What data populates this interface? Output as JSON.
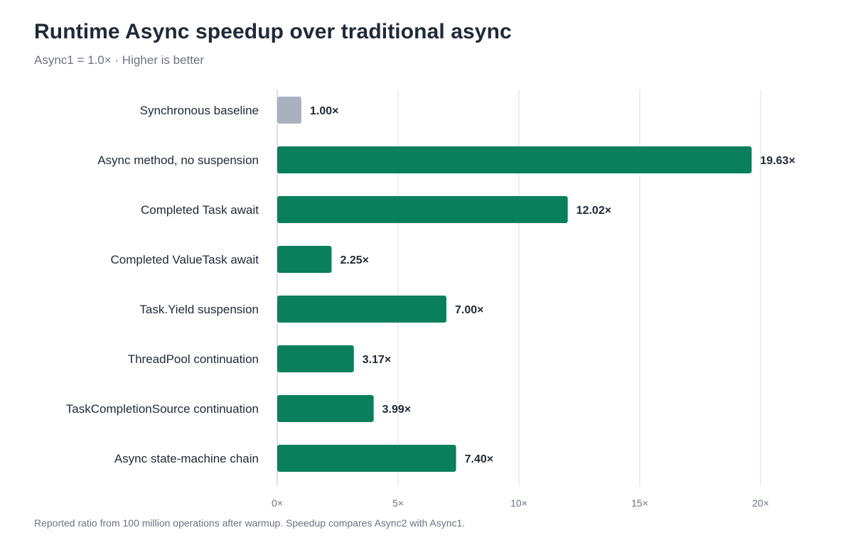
{
  "header": {
    "title": "Runtime Async speedup over traditional async",
    "subtitle": "Async1 = 1.0× · Higher is better"
  },
  "footer": {
    "note": "Reported ratio from 100 million operations after warmup. Speedup compares Async2 with Async1."
  },
  "colors": {
    "accent": "#0a7f5c",
    "baseline": "#a9b0be",
    "grid": "#e5e7eb",
    "text": "#1f2937",
    "muted": "#6b7280"
  },
  "chart_data": {
    "type": "bar",
    "orientation": "horizontal",
    "title": "Runtime Async speedup over traditional async",
    "subtitle": "Async1 = 1.0× · Higher is better",
    "categories": [
      "Synchronous baseline",
      "Async method, no suspension",
      "Completed Task await",
      "Completed ValueTask await",
      "Task.Yield suspension",
      "ThreadPool continuation",
      "TaskCompletionSource continuation",
      "Async state-machine chain"
    ],
    "values": [
      1.0,
      19.63,
      12.02,
      2.25,
      7.0,
      3.17,
      3.99,
      7.4
    ],
    "value_labels": [
      "1.00×",
      "19.63×",
      "12.02×",
      "2.25×",
      "7.00×",
      "3.17×",
      "3.99×",
      "7.40×"
    ],
    "bar_colors": [
      "#a9b0be",
      "#0a7f5c",
      "#0a7f5c",
      "#0a7f5c",
      "#0a7f5c",
      "#0a7f5c",
      "#0a7f5c",
      "#0a7f5c"
    ],
    "xlim": [
      0,
      20
    ],
    "xticks": [
      0,
      5,
      10,
      15,
      20
    ],
    "xtick_labels": [
      "0×",
      "5×",
      "10×",
      "15×",
      "20×"
    ],
    "grid": true,
    "legend": "none"
  }
}
